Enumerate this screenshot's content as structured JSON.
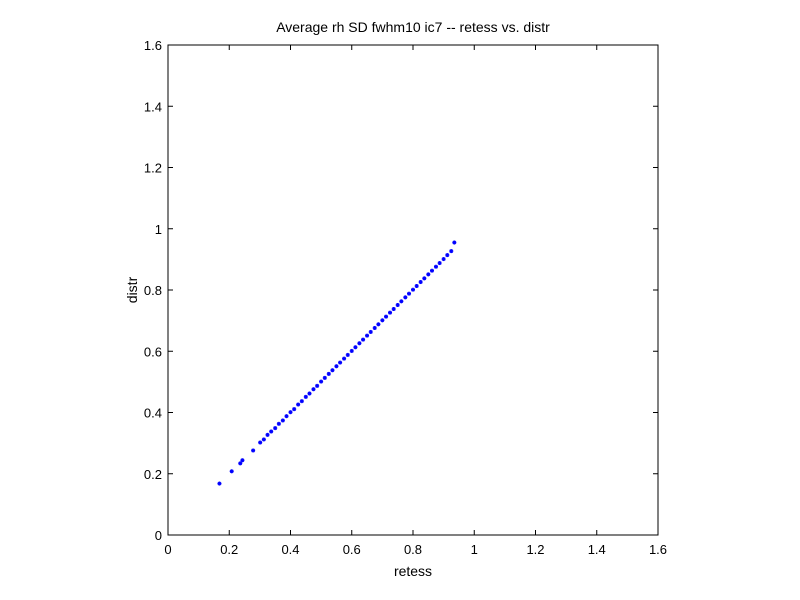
{
  "chart_data": {
    "type": "scatter",
    "title": "Average rh SD fwhm10 ic7 -- retess vs. distr",
    "xlabel": "retess",
    "ylabel": "distr",
    "xlim": [
      0,
      1.6
    ],
    "ylim": [
      0,
      1.6
    ],
    "xticks": [
      "0",
      "0.2",
      "0.4",
      "0.6",
      "0.8",
      "1",
      "1.2",
      "1.4",
      "1.6"
    ],
    "yticks": [
      "0",
      "0.2",
      "0.4",
      "0.6",
      "0.8",
      "1",
      "1.2",
      "1.4",
      "1.6"
    ],
    "grid": false,
    "legend": "none",
    "marker_color": "#0000ff",
    "series": [
      {
        "x": [
          0.168,
          0.208,
          0.236,
          0.243,
          0.278,
          0.301,
          0.313,
          0.325,
          0.337,
          0.35,
          0.362,
          0.375,
          0.387,
          0.4,
          0.412,
          0.425,
          0.437,
          0.45,
          0.462,
          0.475,
          0.487,
          0.5,
          0.512,
          0.525,
          0.537,
          0.55,
          0.562,
          0.575,
          0.587,
          0.6,
          0.612,
          0.625,
          0.637,
          0.65,
          0.662,
          0.675,
          0.687,
          0.7,
          0.712,
          0.725,
          0.737,
          0.75,
          0.762,
          0.775,
          0.787,
          0.8,
          0.812,
          0.825,
          0.837,
          0.85,
          0.862,
          0.875,
          0.887,
          0.9,
          0.912,
          0.925,
          0.935
        ],
        "y": [
          0.168,
          0.208,
          0.234,
          0.244,
          0.276,
          0.302,
          0.312,
          0.327,
          0.338,
          0.349,
          0.363,
          0.374,
          0.388,
          0.401,
          0.411,
          0.426,
          0.437,
          0.451,
          0.462,
          0.476,
          0.487,
          0.501,
          0.513,
          0.526,
          0.538,
          0.551,
          0.563,
          0.576,
          0.588,
          0.601,
          0.613,
          0.626,
          0.638,
          0.651,
          0.663,
          0.676,
          0.688,
          0.701,
          0.713,
          0.726,
          0.738,
          0.751,
          0.763,
          0.776,
          0.788,
          0.801,
          0.813,
          0.826,
          0.838,
          0.851,
          0.863,
          0.876,
          0.888,
          0.901,
          0.914,
          0.927,
          0.955
        ]
      }
    ]
  }
}
